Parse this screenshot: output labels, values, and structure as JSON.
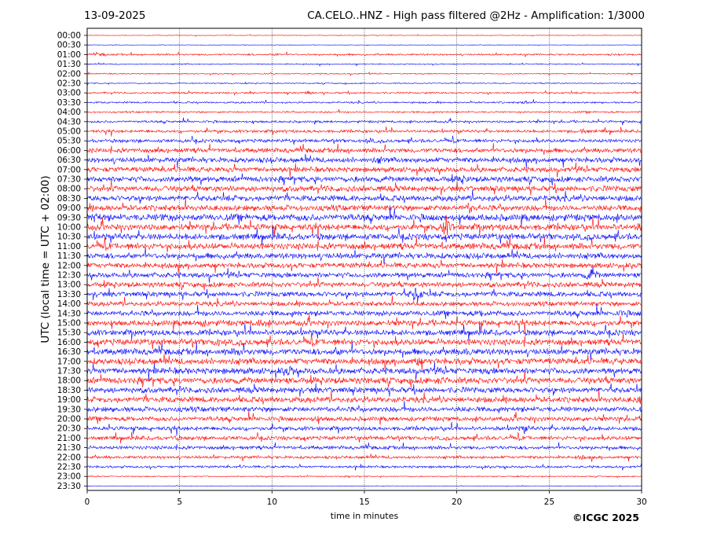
{
  "header": {
    "date": "13-09-2025",
    "title": "CA.CELO..HNZ - High pass filtered @2Hz - Amplification: 1/3000"
  },
  "copyright": "©ICGC 2025",
  "chart_data": {
    "type": "line",
    "title": "CA.CELO..HNZ - High pass filtered @2Hz - Amplification: 1/3000",
    "xlabel": "time in minutes",
    "ylabel": "UTC (local time = UTC + 02:00)",
    "xlim": [
      0,
      30
    ],
    "x_ticks": [
      0,
      5,
      10,
      15,
      20,
      25,
      30
    ],
    "x_grid": "dotted vertical lines at 5-minute intervals",
    "row_labels": [
      "00:00",
      "00:30",
      "01:00",
      "01:30",
      "02:00",
      "02:30",
      "03:00",
      "03:30",
      "04:00",
      "04:30",
      "05:00",
      "05:30",
      "06:00",
      "06:30",
      "07:00",
      "07:30",
      "08:00",
      "08:30",
      "09:00",
      "09:30",
      "10:00",
      "10:30",
      "11:00",
      "11:30",
      "12:00",
      "12:30",
      "13:00",
      "13:30",
      "14:00",
      "14:30",
      "15:00",
      "15:30",
      "16:00",
      "16:30",
      "17:00",
      "17:30",
      "18:00",
      "18:30",
      "19:00",
      "19:30",
      "20:00",
      "20:30",
      "21:00",
      "21:30",
      "22:00",
      "22:30",
      "23:00",
      "23:30"
    ],
    "colors": {
      "even_rows": "#ff0000",
      "odd_rows": "#0000ff"
    },
    "row_noise_level": [
      0.05,
      0.05,
      0.15,
      0.1,
      0.1,
      0.1,
      0.15,
      0.15,
      0.15,
      0.2,
      0.25,
      0.3,
      0.4,
      0.45,
      0.45,
      0.5,
      0.5,
      0.5,
      0.5,
      0.6,
      0.55,
      0.55,
      0.55,
      0.5,
      0.45,
      0.45,
      0.45,
      0.45,
      0.4,
      0.45,
      0.5,
      0.5,
      0.55,
      0.55,
      0.55,
      0.55,
      0.55,
      0.5,
      0.5,
      0.45,
      0.4,
      0.35,
      0.35,
      0.3,
      0.25,
      0.2,
      0.1,
      0.05
    ],
    "events": [
      {
        "row": 2,
        "minute": 0.9,
        "amp": 0.25
      },
      {
        "row": 2,
        "minute": 10.3,
        "amp": 0.2
      },
      {
        "row": 6,
        "minute": 12.0,
        "amp": 0.3
      },
      {
        "row": 7,
        "minute": 23.7,
        "amp": 0.3
      },
      {
        "row": 10,
        "minute": 26.8,
        "amp": 0.35
      },
      {
        "row": 11,
        "minute": 15.3,
        "amp": 0.4
      },
      {
        "row": 13,
        "minute": 15.8,
        "amp": 0.5
      },
      {
        "row": 15,
        "minute": 20.3,
        "amp": 0.55
      },
      {
        "row": 15,
        "minute": 5.4,
        "amp": 0.35
      },
      {
        "row": 18,
        "minute": 20.7,
        "amp": 0.9
      },
      {
        "row": 19,
        "minute": 0.5,
        "amp": 0.6
      },
      {
        "row": 19,
        "minute": 4.2,
        "amp": 0.55
      },
      {
        "row": 20,
        "minute": 19.4,
        "amp": 2.2
      },
      {
        "row": 20,
        "minute": 29.9,
        "amp": 0.4
      },
      {
        "row": 25,
        "minute": 27.3,
        "amp": 1.8
      },
      {
        "row": 27,
        "minute": 17.8,
        "amp": 2.6
      },
      {
        "row": 29,
        "minute": 21.4,
        "amp": 0.55
      },
      {
        "row": 29,
        "minute": 29.0,
        "amp": 0.55
      },
      {
        "row": 30,
        "minute": 6.2,
        "amp": 0.5
      },
      {
        "row": 30,
        "minute": 9.4,
        "amp": 0.65
      },
      {
        "row": 32,
        "minute": 7.0,
        "amp": 0.45
      },
      {
        "row": 33,
        "minute": 8.2,
        "amp": 0.55
      },
      {
        "row": 33,
        "minute": 13.5,
        "amp": 0.5
      },
      {
        "row": 33,
        "minute": 20.6,
        "amp": 0.45
      },
      {
        "row": 34,
        "minute": 17.9,
        "amp": 0.6
      },
      {
        "row": 35,
        "minute": 10.9,
        "amp": 0.85
      },
      {
        "row": 36,
        "minute": 19.3,
        "amp": 0.4
      },
      {
        "row": 38,
        "minute": 29.9,
        "amp": 0.5
      },
      {
        "row": 40,
        "minute": 12.4,
        "amp": 0.35
      },
      {
        "row": 41,
        "minute": 23.7,
        "amp": 0.55
      },
      {
        "row": 41,
        "minute": 27.0,
        "amp": 0.4
      },
      {
        "row": 42,
        "minute": 4.8,
        "amp": 0.3
      },
      {
        "row": 44,
        "minute": 26.8,
        "amp": 0.3
      }
    ]
  }
}
